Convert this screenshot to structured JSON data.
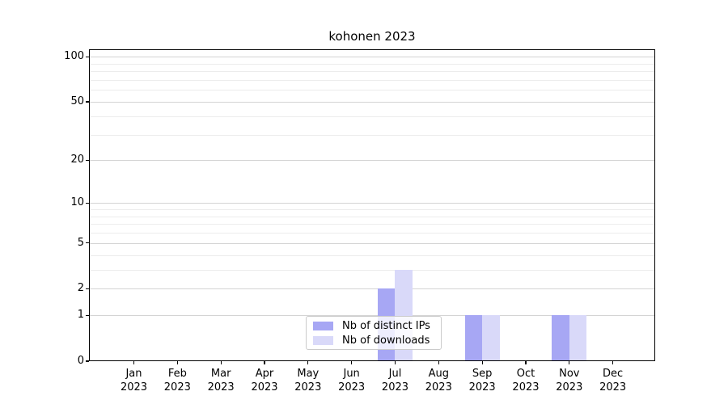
{
  "chart_data": {
    "type": "bar",
    "title": "kohonen 2023",
    "categories": [
      "Jan 2023",
      "Feb 2023",
      "Mar 2023",
      "Apr 2023",
      "May 2023",
      "Jun 2023",
      "Jul 2023",
      "Aug 2023",
      "Sep 2023",
      "Oct 2023",
      "Nov 2023",
      "Dec 2023"
    ],
    "x_tick_line1": [
      "Jan",
      "Feb",
      "Mar",
      "Apr",
      "May",
      "Jun",
      "Jul",
      "Aug",
      "Sep",
      "Oct",
      "Nov",
      "Dec"
    ],
    "x_tick_line2": [
      "2023",
      "2023",
      "2023",
      "2023",
      "2023",
      "2023",
      "2023",
      "2023",
      "2023",
      "2023",
      "2023",
      "2023"
    ],
    "series": [
      {
        "name": "Nb of distinct IPs",
        "color": "#a7a7f4",
        "values": [
          0,
          0,
          0,
          0,
          0,
          0,
          2,
          0,
          1,
          0,
          1,
          0
        ]
      },
      {
        "name": "Nb of downloads",
        "color": "#d9d9f9",
        "values": [
          0,
          0,
          0,
          0,
          0,
          0,
          3,
          0,
          1,
          0,
          1,
          0
        ]
      }
    ],
    "yscale": "log10(1+x)",
    "ylim": [
      0,
      112
    ],
    "y_major_ticks": [
      0,
      1,
      2,
      5,
      10,
      20,
      50,
      100
    ],
    "y_minor_gridlines": [
      3,
      4,
      6,
      7,
      8,
      9,
      30,
      40,
      60,
      70,
      80,
      90
    ],
    "xlabel": "",
    "ylabel": "",
    "grid": "horizontal",
    "legend_position": "lower center"
  }
}
